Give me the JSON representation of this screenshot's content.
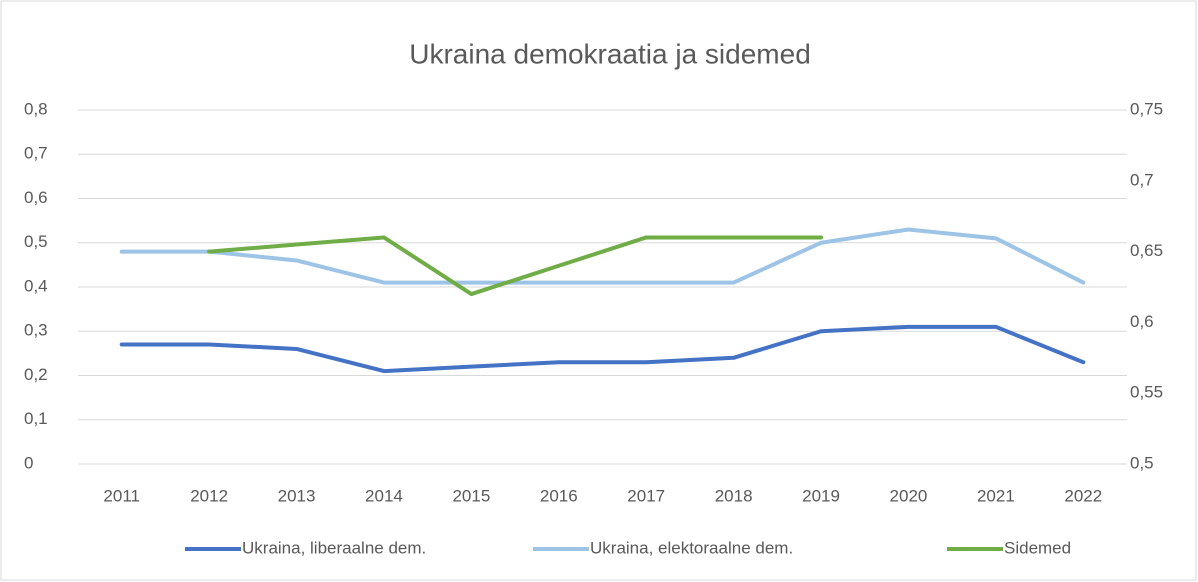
{
  "chart_data": {
    "type": "line",
    "title": "Ukraina demokraatia ja sidemed",
    "categories": [
      "2011",
      "2012",
      "2013",
      "2014",
      "2015",
      "2016",
      "2017",
      "2018",
      "2019",
      "2020",
      "2021",
      "2022"
    ],
    "series": [
      {
        "name": "Ukraina, liberaalne dem.",
        "color": "#4472c4",
        "values": [
          0.27,
          0.27,
          0.26,
          0.21,
          0.22,
          0.23,
          0.23,
          0.24,
          0.3,
          0.31,
          0.31,
          0.23
        ]
      },
      {
        "name": "Ukraina, elektoraalne dem.",
        "color": "#9dc3e6",
        "values": [
          0.48,
          0.48,
          0.46,
          0.41,
          0.41,
          0.41,
          0.41,
          0.41,
          0.5,
          0.53,
          0.51,
          0.41
        ]
      },
      {
        "name": "Sidemed",
        "color": "#70ad47",
        "axis": "y2",
        "values": [
          null,
          0.65,
          0.655,
          0.66,
          0.62,
          0.64,
          0.66,
          0.66,
          0.66,
          null,
          null,
          null
        ]
      }
    ],
    "ylim": [
      0,
      0.8
    ],
    "yticks": [
      0,
      {
        "value": 0.1,
        "label": "0,1"
      },
      {
        "value": 0.2,
        "label": "0,2"
      },
      {
        "value": 0.3,
        "label": "0,3"
      },
      {
        "value": 0.4,
        "label": "0,4"
      },
      {
        "value": 0.5,
        "label": "0,5"
      },
      {
        "value": 0.6,
        "label": "0,6"
      },
      {
        "value": 0.7,
        "label": "0,7"
      },
      {
        "value": 0.8,
        "label": "0,8"
      }
    ],
    "y2lim": [
      0.5,
      0.75
    ],
    "y2ticks": [
      {
        "value": 0.5,
        "label": "0,5"
      },
      {
        "value": 0.55,
        "label": "0,55"
      },
      {
        "value": 0.6,
        "label": "0,6"
      },
      {
        "value": 0.65,
        "label": "0,65"
      },
      {
        "value": 0.7,
        "label": "0,7"
      },
      {
        "value": 0.75,
        "label": "0,75"
      }
    ],
    "grid": true,
    "legend": "bottom"
  }
}
